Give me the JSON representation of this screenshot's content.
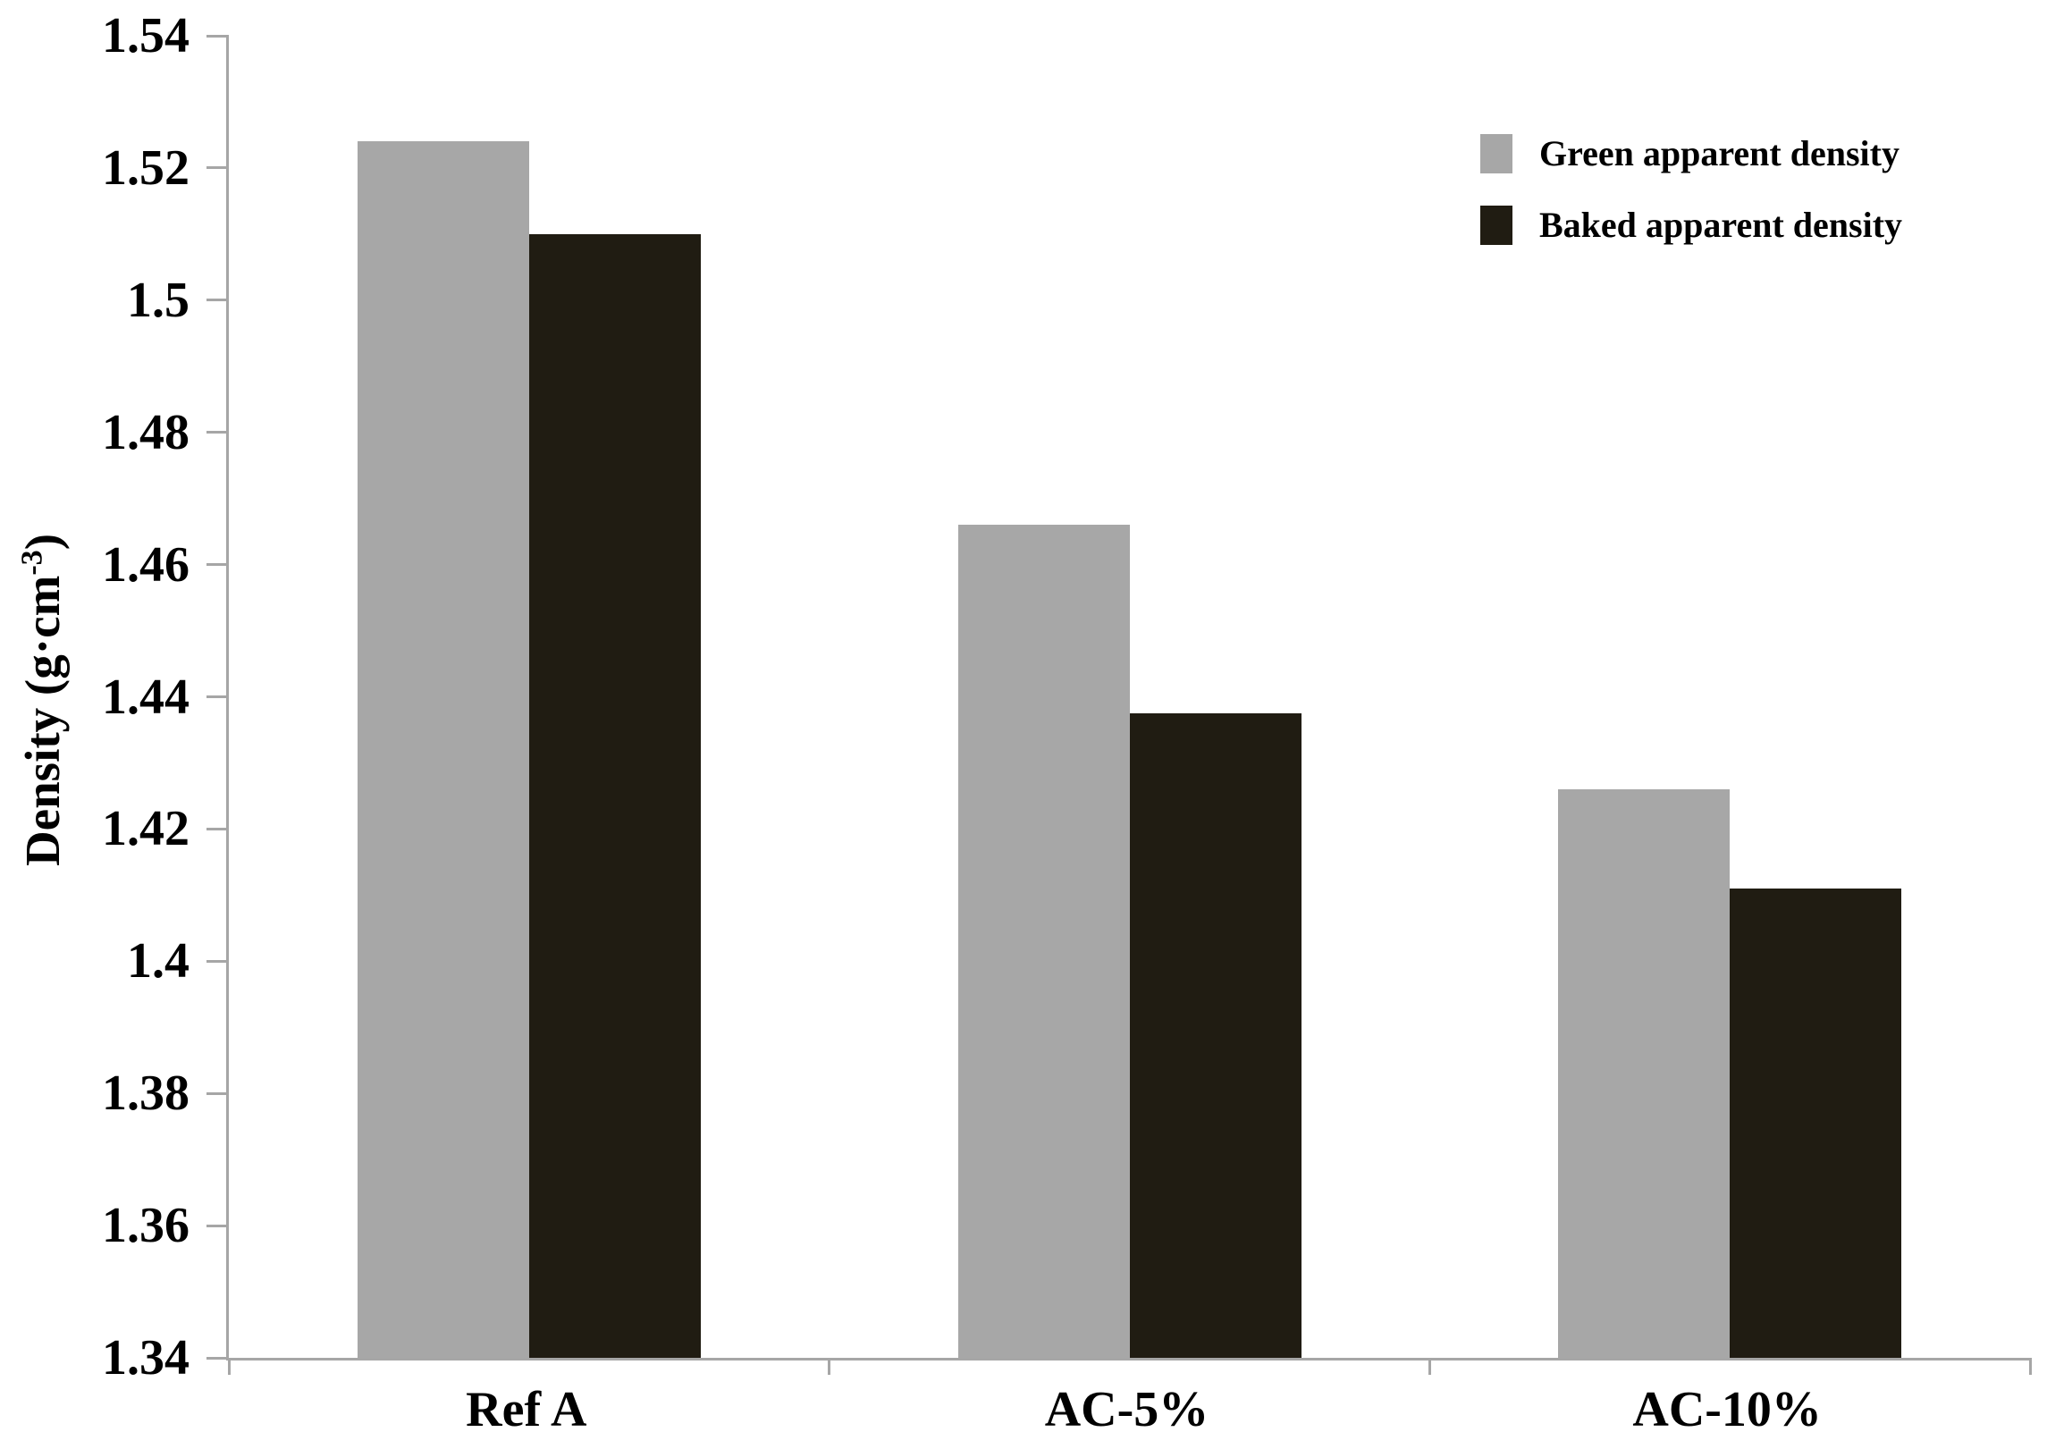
{
  "chart_data": {
    "type": "bar",
    "title": "",
    "categories": [
      "Ref A",
      "AC-5%",
      "AC-10%"
    ],
    "series": [
      {
        "name": "Green apparent density",
        "color": "#a7a7a7",
        "values": [
          1.524,
          1.466,
          1.426
        ]
      },
      {
        "name": "Baked apparent density",
        "color": "#201c12",
        "values": [
          1.51,
          1.4375,
          1.411
        ]
      }
    ],
    "xlabel": "",
    "ylabel": "Density (g·cm⁻³)",
    "ylabel_prefix": "Density (g·cm",
    "ylabel_superscript": "-3",
    "ylabel_suffix": ")",
    "ylim": [
      1.34,
      1.54
    ],
    "yticks": [
      {
        "value": 1.34,
        "label": "1.34"
      },
      {
        "value": 1.36,
        "label": "1.36"
      },
      {
        "value": 1.38,
        "label": "1.38"
      },
      {
        "value": 1.4,
        "label": "1.4"
      },
      {
        "value": 1.42,
        "label": "1.42"
      },
      {
        "value": 1.44,
        "label": "1.44"
      },
      {
        "value": 1.46,
        "label": "1.46"
      },
      {
        "value": 1.48,
        "label": "1.48"
      },
      {
        "value": 1.5,
        "label": "1.5"
      },
      {
        "value": 1.52,
        "label": "1.52"
      },
      {
        "value": 1.54,
        "label": "1.54"
      }
    ],
    "grid": false,
    "legend_position": "top-right",
    "axis_color": "#a6a6a6",
    "bar_width_ratio": 0.286
  }
}
